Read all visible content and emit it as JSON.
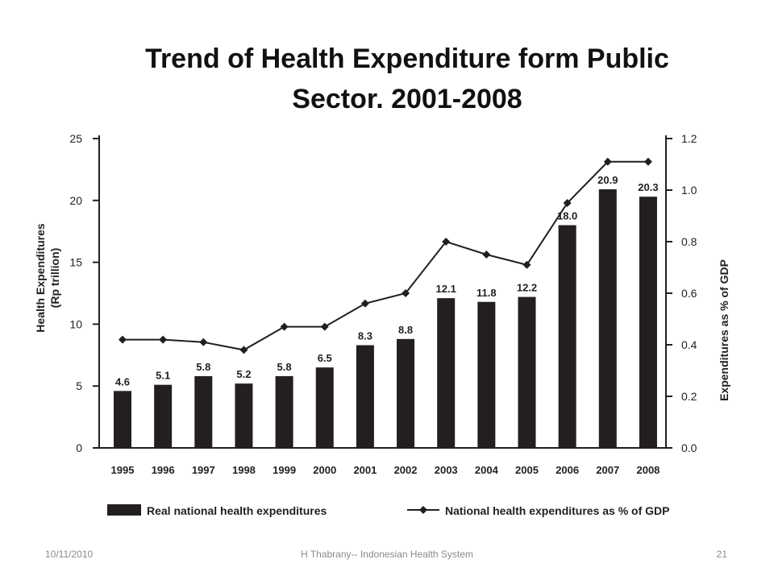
{
  "slide": {
    "title_line1": "Trend of  Health Expenditure form Public",
    "title_line2": "Sector. 2001-2008"
  },
  "footer": {
    "date": "10/11/2010",
    "center": "H Thabrany-- Indonesian Health System",
    "page": "21"
  },
  "chart_data": {
    "type": "bar",
    "categories": [
      "1995",
      "1996",
      "1997",
      "1998",
      "1999",
      "2000",
      "2001",
      "2002",
      "2003",
      "2004",
      "2005",
      "2006",
      "2007",
      "2008"
    ],
    "series": [
      {
        "name": "Real national health expenditures",
        "type": "bar",
        "axis": "left",
        "values": [
          4.6,
          5.1,
          5.8,
          5.2,
          5.8,
          6.5,
          8.3,
          8.8,
          12.1,
          11.8,
          12.2,
          18.0,
          20.9,
          20.3
        ],
        "labels": [
          "4.6",
          "5.1",
          "5.8",
          "5.2",
          "5.8",
          "6.5",
          "8.3",
          "8.8",
          "12.1",
          "11.8",
          "12.2",
          "18.0",
          "20.9",
          "20.3"
        ]
      },
      {
        "name": "National health expenditures as % of GDP",
        "type": "line",
        "axis": "right",
        "values": [
          0.42,
          0.42,
          0.41,
          0.38,
          0.47,
          0.47,
          0.56,
          0.6,
          0.8,
          0.75,
          0.71,
          0.95,
          1.11,
          1.11
        ]
      }
    ],
    "ylabel": "Health Expenditures (Rp trillion)",
    "ylabel_lines": [
      "Health Expenditures",
      "(Rp trillion)"
    ],
    "y2label": "Expenditures as % of GDP",
    "ylim": [
      0,
      25
    ],
    "y2lim": [
      0,
      1.2
    ],
    "yticks": [
      "0",
      "5",
      "10",
      "15",
      "20",
      "25"
    ],
    "y2ticks": [
      "0.0",
      "0.2",
      "0.4",
      "0.6",
      "0.8",
      "1.0",
      "1.2"
    ],
    "grid": false,
    "legend_position": "bottom",
    "colors": {
      "bar": "#231f20",
      "line": "#231f20",
      "axis": "#231f20"
    }
  }
}
